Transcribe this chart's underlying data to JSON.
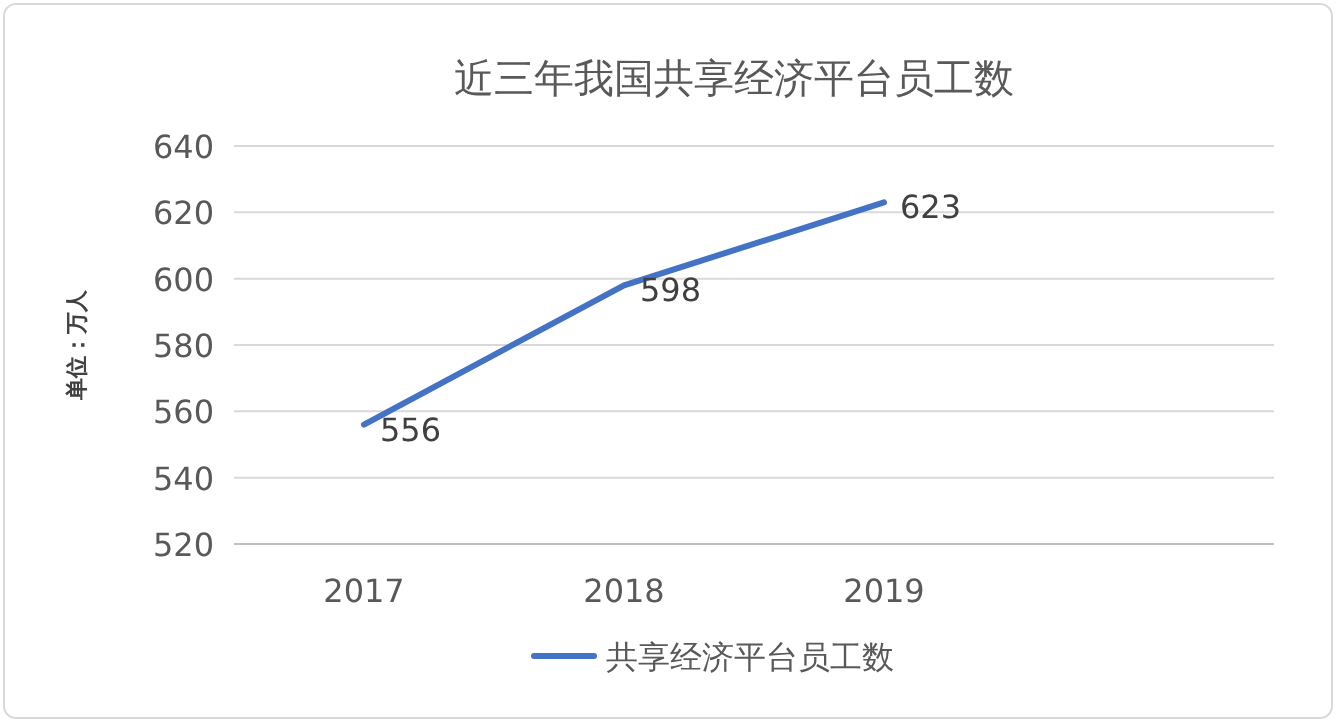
{
  "chart_data": {
    "type": "line",
    "title": "近三年我国共享经济平台员工数",
    "ylabel": "单位：万人",
    "categories": [
      "2017",
      "2018",
      "2019",
      null
    ],
    "series": [
      {
        "name": "共享经济平台员工数",
        "color": "#4472c4",
        "values": [
          556,
          598,
          623,
          null
        ]
      }
    ],
    "ylim": [
      520,
      640
    ],
    "yticks": [
      520,
      540,
      560,
      580,
      600,
      620,
      640
    ],
    "grid": "y",
    "legend": "bottom",
    "data_labels": true
  }
}
